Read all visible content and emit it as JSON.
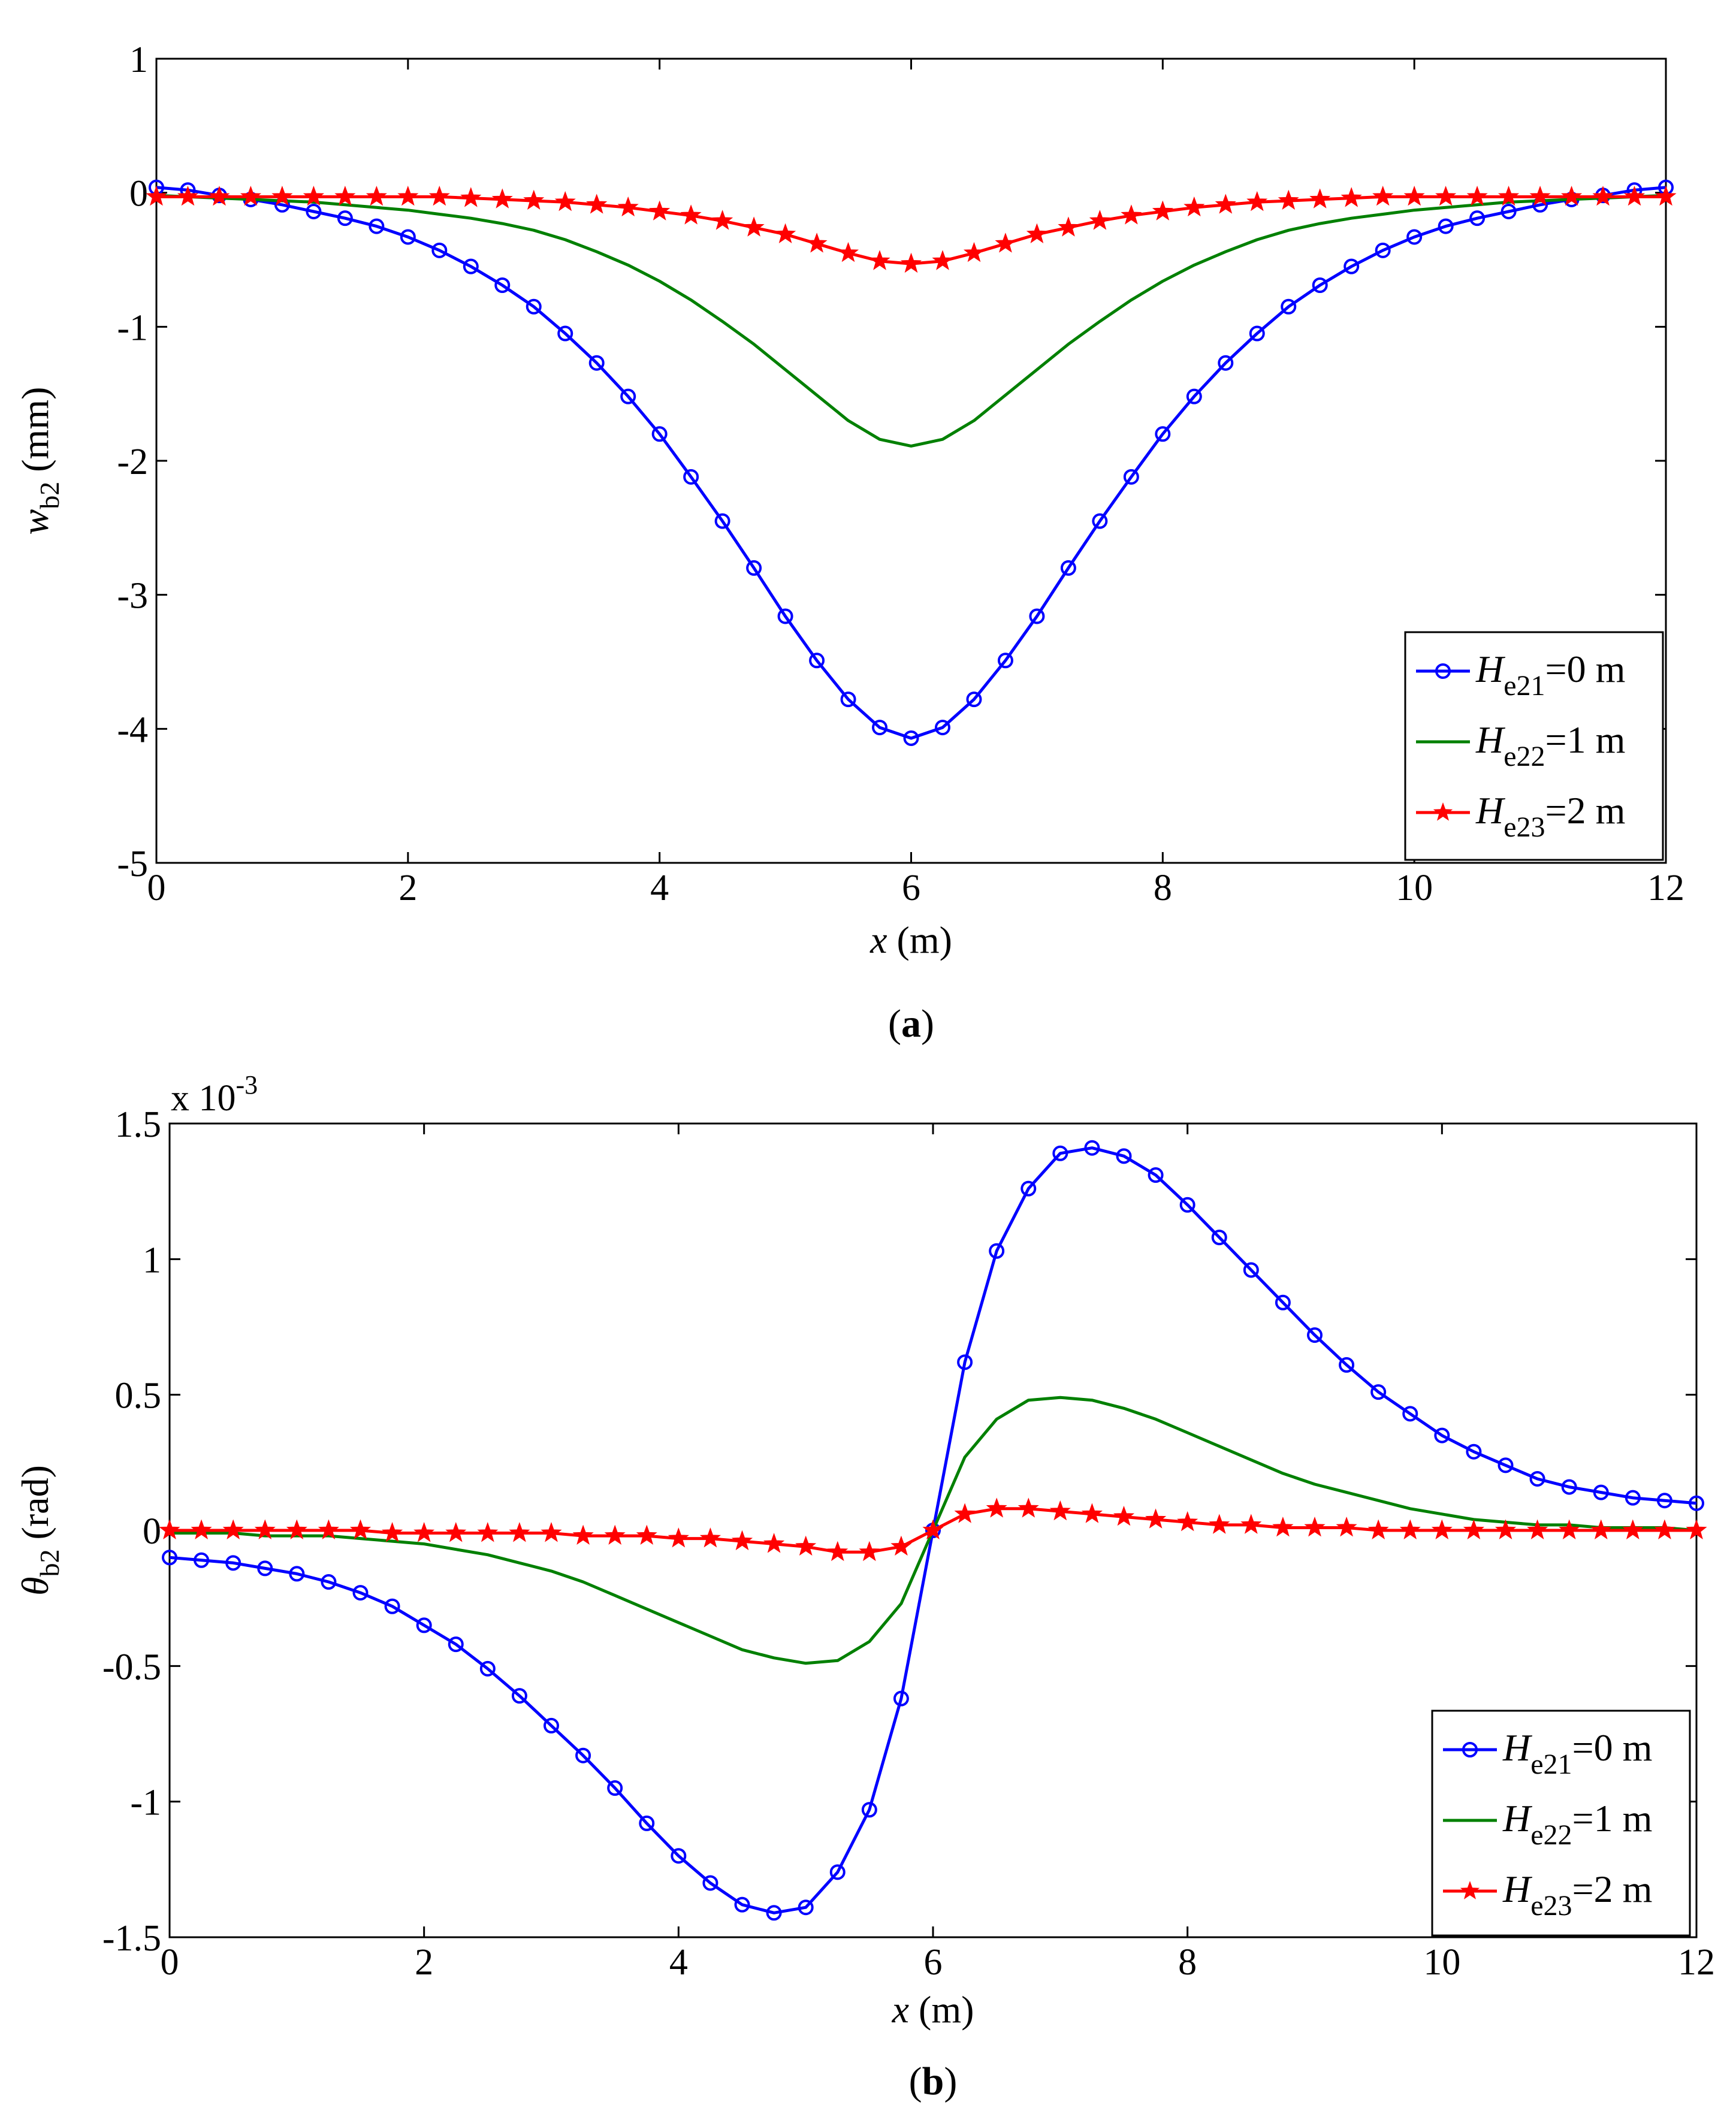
{
  "chart_data": [
    {
      "id": "a",
      "type": "line",
      "caption_letter": "a",
      "x_axis_var": "x",
      "x_axis_unit": "(m)",
      "y_axis_var": "w",
      "y_axis_sub": "b2",
      "y_axis_unit": "(mm)",
      "xlim": [
        0,
        12
      ],
      "ylim": [
        -5,
        1
      ],
      "x_ticks": [
        0,
        2,
        4,
        6,
        8,
        10,
        12
      ],
      "y_ticks": [
        -5,
        -4,
        -3,
        -2,
        -1,
        0,
        1
      ],
      "y_tick_labels": [
        "-5",
        "-4",
        "-3",
        "-2",
        "-1",
        "0",
        "1"
      ],
      "exponent_text": "",
      "legend_position": "bottom-right",
      "series": [
        {
          "name": "He21=0 m",
          "label_var": "H",
          "label_sub": "e21",
          "label_rest": "=0 m",
          "color": "#0000ff",
          "marker": "circle",
          "x": [
            0,
            0.25,
            0.5,
            0.75,
            1,
            1.25,
            1.5,
            1.75,
            2,
            2.25,
            2.5,
            2.75,
            3,
            3.25,
            3.5,
            3.75,
            4,
            4.25,
            4.5,
            4.75,
            5,
            5.25,
            5.5,
            5.75,
            6,
            6.25,
            6.5,
            6.75,
            7,
            7.25,
            7.5,
            7.75,
            8,
            8.25,
            8.5,
            8.75,
            9,
            9.25,
            9.5,
            9.75,
            10,
            10.25,
            10.5,
            10.75,
            11,
            11.25,
            11.5,
            11.75,
            12
          ],
          "values": [
            0.04,
            0.02,
            -0.02,
            -0.05,
            -0.09,
            -0.14,
            -0.19,
            -0.25,
            -0.33,
            -0.43,
            -0.55,
            -0.69,
            -0.85,
            -1.05,
            -1.27,
            -1.52,
            -1.8,
            -2.12,
            -2.45,
            -2.8,
            -3.16,
            -3.49,
            -3.78,
            -3.99,
            -4.07,
            -3.99,
            -3.78,
            -3.49,
            -3.16,
            -2.8,
            -2.45,
            -2.12,
            -1.8,
            -1.52,
            -1.27,
            -1.05,
            -0.85,
            -0.69,
            -0.55,
            -0.43,
            -0.33,
            -0.25,
            -0.19,
            -0.14,
            -0.09,
            -0.05,
            -0.02,
            0.02,
            0.04
          ]
        },
        {
          "name": "He22=1 m",
          "label_var": "H",
          "label_sub": "e22",
          "label_rest": "=1 m",
          "color": "#008000",
          "marker": "none",
          "x": [
            0,
            0.25,
            0.5,
            0.75,
            1,
            1.25,
            1.5,
            1.75,
            2,
            2.25,
            2.5,
            2.75,
            3,
            3.25,
            3.5,
            3.75,
            4,
            4.25,
            4.5,
            4.75,
            5,
            5.25,
            5.5,
            5.75,
            6,
            6.25,
            6.5,
            6.75,
            7,
            7.25,
            7.5,
            7.75,
            8,
            8.25,
            8.5,
            8.75,
            9,
            9.25,
            9.5,
            9.75,
            10,
            10.25,
            10.5,
            10.75,
            11,
            11.25,
            11.5,
            11.75,
            12
          ],
          "values": [
            -0.02,
            -0.03,
            -0.04,
            -0.05,
            -0.06,
            -0.07,
            -0.09,
            -0.11,
            -0.13,
            -0.16,
            -0.19,
            -0.23,
            -0.28,
            -0.35,
            -0.44,
            -0.54,
            -0.66,
            -0.8,
            -0.96,
            -1.13,
            -1.32,
            -1.51,
            -1.7,
            -1.84,
            -1.89,
            -1.84,
            -1.7,
            -1.51,
            -1.32,
            -1.13,
            -0.96,
            -0.8,
            -0.66,
            -0.54,
            -0.44,
            -0.35,
            -0.28,
            -0.23,
            -0.19,
            -0.16,
            -0.13,
            -0.11,
            -0.09,
            -0.07,
            -0.06,
            -0.05,
            -0.04,
            -0.03,
            -0.02
          ]
        },
        {
          "name": "He23=2 m",
          "label_var": "H",
          "label_sub": "e23",
          "label_rest": "=2 m",
          "color": "#ff0000",
          "marker": "star",
          "x": [
            0,
            0.25,
            0.5,
            0.75,
            1,
            1.25,
            1.5,
            1.75,
            2,
            2.25,
            2.5,
            2.75,
            3,
            3.25,
            3.5,
            3.75,
            4,
            4.25,
            4.5,
            4.75,
            5,
            5.25,
            5.5,
            5.75,
            6,
            6.25,
            6.5,
            6.75,
            7,
            7.25,
            7.5,
            7.75,
            8,
            8.25,
            8.5,
            8.75,
            9,
            9.25,
            9.5,
            9.75,
            10,
            10.25,
            10.5,
            10.75,
            11,
            11.25,
            11.5,
            11.75,
            12
          ],
          "values": [
            -0.03,
            -0.03,
            -0.03,
            -0.03,
            -0.03,
            -0.03,
            -0.03,
            -0.03,
            -0.03,
            -0.03,
            -0.04,
            -0.05,
            -0.06,
            -0.07,
            -0.09,
            -0.11,
            -0.14,
            -0.17,
            -0.21,
            -0.26,
            -0.31,
            -0.38,
            -0.45,
            -0.51,
            -0.53,
            -0.51,
            -0.45,
            -0.38,
            -0.31,
            -0.26,
            -0.21,
            -0.17,
            -0.14,
            -0.11,
            -0.09,
            -0.07,
            -0.06,
            -0.05,
            -0.04,
            -0.03,
            -0.03,
            -0.03,
            -0.03,
            -0.03,
            -0.03,
            -0.03,
            -0.03,
            -0.03,
            -0.03
          ]
        }
      ]
    },
    {
      "id": "b",
      "type": "line",
      "caption_letter": "b",
      "x_axis_var": "x",
      "x_axis_unit": "(m)",
      "y_axis_var": "θ",
      "y_axis_sub": "b2",
      "y_axis_unit": "(rad)",
      "xlim": [
        0,
        12
      ],
      "ylim": [
        -1.5,
        1.5
      ],
      "x_ticks": [
        0,
        2,
        4,
        6,
        8,
        10,
        12
      ],
      "y_ticks": [
        -1.5,
        -1,
        -0.5,
        0,
        0.5,
        1,
        1.5
      ],
      "y_tick_labels": [
        "-1.5",
        "-1",
        "-0.5",
        "0",
        "0.5",
        "1",
        "1.5"
      ],
      "exponent_text": "x 10",
      "exponent_power": "-3",
      "legend_position": "bottom-right",
      "series": [
        {
          "name": "He21=0 m",
          "label_var": "H",
          "label_sub": "e21",
          "label_rest": "=0 m",
          "color": "#0000ff",
          "marker": "circle",
          "x": [
            0,
            0.25,
            0.5,
            0.75,
            1,
            1.25,
            1.5,
            1.75,
            2,
            2.25,
            2.5,
            2.75,
            3,
            3.25,
            3.5,
            3.75,
            4,
            4.25,
            4.5,
            4.75,
            5,
            5.25,
            5.5,
            5.75,
            6,
            6.25,
            6.5,
            6.75,
            7,
            7.25,
            7.5,
            7.75,
            8,
            8.25,
            8.5,
            8.75,
            9,
            9.25,
            9.5,
            9.75,
            10,
            10.25,
            10.5,
            10.75,
            11,
            11.25,
            11.5,
            11.75,
            12
          ],
          "values": [
            -0.1,
            -0.11,
            -0.12,
            -0.14,
            -0.16,
            -0.19,
            -0.23,
            -0.28,
            -0.35,
            -0.42,
            -0.51,
            -0.61,
            -0.72,
            -0.83,
            -0.95,
            -1.08,
            -1.2,
            -1.3,
            -1.38,
            -1.41,
            -1.39,
            -1.26,
            -1.03,
            -0.62,
            0,
            0.62,
            1.03,
            1.26,
            1.39,
            1.41,
            1.38,
            1.31,
            1.2,
            1.08,
            0.96,
            0.84,
            0.72,
            0.61,
            0.51,
            0.43,
            0.35,
            0.29,
            0.24,
            0.19,
            0.16,
            0.14,
            0.12,
            0.11,
            0.1
          ]
        },
        {
          "name": "He22=1 m",
          "label_var": "H",
          "label_sub": "e22",
          "label_rest": "=1 m",
          "color": "#008000",
          "marker": "none",
          "x": [
            0,
            0.25,
            0.5,
            0.75,
            1,
            1.25,
            1.5,
            1.75,
            2,
            2.25,
            2.5,
            2.75,
            3,
            3.25,
            3.5,
            3.75,
            4,
            4.25,
            4.5,
            4.75,
            5,
            5.25,
            5.5,
            5.75,
            6,
            6.25,
            6.5,
            6.75,
            7,
            7.25,
            7.5,
            7.75,
            8,
            8.25,
            8.5,
            8.75,
            9,
            9.25,
            9.5,
            9.75,
            10,
            10.25,
            10.5,
            10.75,
            11,
            11.25,
            11.5,
            11.75,
            12
          ],
          "values": [
            -0.01,
            -0.01,
            -0.01,
            -0.02,
            -0.02,
            -0.02,
            -0.03,
            -0.04,
            -0.05,
            -0.07,
            -0.09,
            -0.12,
            -0.15,
            -0.19,
            -0.24,
            -0.29,
            -0.34,
            -0.39,
            -0.44,
            -0.47,
            -0.49,
            -0.48,
            -0.41,
            -0.27,
            0,
            0.27,
            0.41,
            0.48,
            0.49,
            0.48,
            0.45,
            0.41,
            0.36,
            0.31,
            0.26,
            0.21,
            0.17,
            0.14,
            0.11,
            0.08,
            0.06,
            0.04,
            0.03,
            0.02,
            0.02,
            0.01,
            0.01,
            0.01,
            0
          ]
        },
        {
          "name": "He23=2 m",
          "label_var": "H",
          "label_sub": "e23",
          "label_rest": "=2 m",
          "color": "#ff0000",
          "marker": "star",
          "x": [
            0,
            0.25,
            0.5,
            0.75,
            1,
            1.25,
            1.5,
            1.75,
            2,
            2.25,
            2.5,
            2.75,
            3,
            3.25,
            3.5,
            3.75,
            4,
            4.25,
            4.5,
            4.75,
            5,
            5.25,
            5.5,
            5.75,
            6,
            6.25,
            6.5,
            6.75,
            7,
            7.25,
            7.5,
            7.75,
            8,
            8.25,
            8.5,
            8.75,
            9,
            9.25,
            9.5,
            9.75,
            10,
            10.25,
            10.5,
            10.75,
            11,
            11.25,
            11.5,
            11.75,
            12
          ],
          "values": [
            0,
            0,
            0,
            0,
            0,
            0,
            0,
            -0.01,
            -0.01,
            -0.01,
            -0.01,
            -0.01,
            -0.01,
            -0.02,
            -0.02,
            -0.02,
            -0.03,
            -0.03,
            -0.04,
            -0.05,
            -0.06,
            -0.08,
            -0.08,
            -0.06,
            0,
            0.06,
            0.08,
            0.08,
            0.07,
            0.06,
            0.05,
            0.04,
            0.03,
            0.02,
            0.02,
            0.01,
            0.01,
            0.01,
            0,
            0,
            0,
            0,
            0,
            0,
            0,
            0,
            0,
            0,
            0
          ]
        }
      ]
    }
  ]
}
